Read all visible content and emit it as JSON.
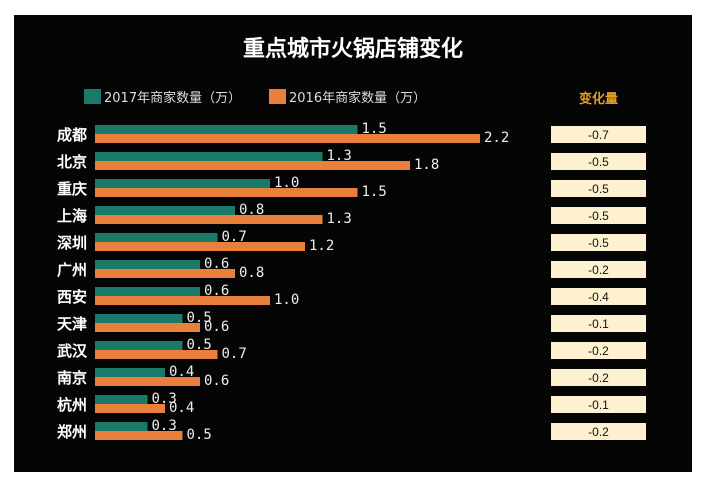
{
  "chart_data": {
    "type": "bar",
    "orientation": "horizontal",
    "title": "重点城市火锅店铺变化",
    "categories": [
      "成都",
      "北京",
      "重庆",
      "上海",
      "深圳",
      "广州",
      "西安",
      "天津",
      "武汉",
      "南京",
      "杭州",
      "郑州"
    ],
    "series": [
      {
        "name": "2017年商家数量（万）",
        "color": "#1a7a6a",
        "values": [
          1.5,
          1.3,
          1.0,
          0.8,
          0.7,
          0.6,
          0.6,
          0.5,
          0.5,
          0.4,
          0.3,
          0.3
        ]
      },
      {
        "name": "2016年商家数量（万）",
        "color": "#e8803c",
        "values": [
          2.2,
          1.8,
          1.5,
          1.3,
          1.2,
          0.8,
          1.0,
          0.6,
          0.7,
          0.6,
          0.4,
          0.5
        ]
      }
    ],
    "change_header": "变化量",
    "change_values": [
      "-0.7",
      "-0.5",
      "-0.5",
      "-0.5",
      "-0.5",
      "-0.2",
      "-0.4",
      "-0.1",
      "-0.2",
      "-0.2",
      "-0.1",
      "-0.2"
    ],
    "xlabel": "",
    "ylabel": "",
    "legend": "top",
    "grid": false
  }
}
